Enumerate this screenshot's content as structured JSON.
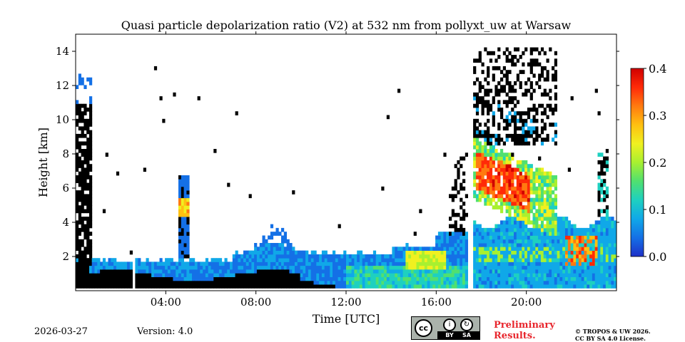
{
  "chart_data": {
    "type": "heatmap",
    "title": "Quasi particle depolarization ratio (V2) at 532 nm from pollyxt_uw at Warsaw",
    "xlabel": "Time [UTC]",
    "ylabel": "Height [km]",
    "xlim": [
      0,
      24
    ],
    "ylim": [
      0,
      15
    ],
    "x_ticks": [
      {
        "value": 4,
        "label": "04:00"
      },
      {
        "value": 8,
        "label": "08:00"
      },
      {
        "value": 12,
        "label": "12:00"
      },
      {
        "value": 16,
        "label": "16:00"
      },
      {
        "value": 20,
        "label": "20:00"
      }
    ],
    "y_ticks": [
      {
        "value": 2,
        "label": "2"
      },
      {
        "value": 4,
        "label": "4"
      },
      {
        "value": 6,
        "label": "6"
      },
      {
        "value": 8,
        "label": "8"
      },
      {
        "value": 10,
        "label": "10"
      },
      {
        "value": 12,
        "label": "12"
      },
      {
        "value": 14,
        "label": "14"
      }
    ],
    "colorbar": {
      "min": 0.0,
      "max": 0.4,
      "ticks": [
        "0.0",
        "0.1",
        "0.2",
        "0.3",
        "0.4"
      ],
      "colormap": [
        "#1f30c8",
        "#1470e6",
        "#10a8e8",
        "#1ed0c0",
        "#50e070",
        "#a8f030",
        "#f0f020",
        "#ffc010",
        "#ff7a10",
        "#ff2a08",
        "#d00000"
      ]
    },
    "no_data_gaps_hours": [
      [
        2.55,
        2.7
      ],
      [
        17.45,
        17.6
      ],
      [
        21.85,
        21.9
      ]
    ],
    "regions": [
      {
        "name": "low-depol night layer",
        "t0": 0.0,
        "t1": 11.8,
        "h0": 0.2,
        "h1": 1.2,
        "value": -1
      },
      {
        "name": "clouds early morning",
        "t0": 0.0,
        "t1": 0.7,
        "h0": 1.5,
        "h1": 11.5,
        "value": -1
      },
      {
        "name": "boundary layer aerosol",
        "t0": 0.6,
        "t1": 17.4,
        "h0": 0.2,
        "h1": 2.2,
        "value": 0.06
      },
      {
        "name": "dust plume",
        "t0": 17.6,
        "t1": 21.5,
        "h0": 4.5,
        "h1": 9.0,
        "value": 0.33
      },
      {
        "name": "cirrus",
        "t0": 17.2,
        "t1": 21.3,
        "h0": 6.5,
        "h1": 14.5,
        "value": -1
      },
      {
        "name": "high-depol lower layer",
        "t0": 21.7,
        "t1": 23.2,
        "h0": 1.5,
        "h1": 3.2,
        "value": 0.36
      }
    ]
  },
  "footer": {
    "date": "2026-03-27",
    "version": "Version: 4.0",
    "license_badge": {
      "cc": "cc",
      "by": "BY",
      "sa": "SA"
    },
    "preliminary_line1": "Preliminary",
    "preliminary_line2": "Results.",
    "copyright_line1": "© TROPOS & UW 2026.",
    "copyright_line2": "CC BY SA 4.0 License."
  }
}
